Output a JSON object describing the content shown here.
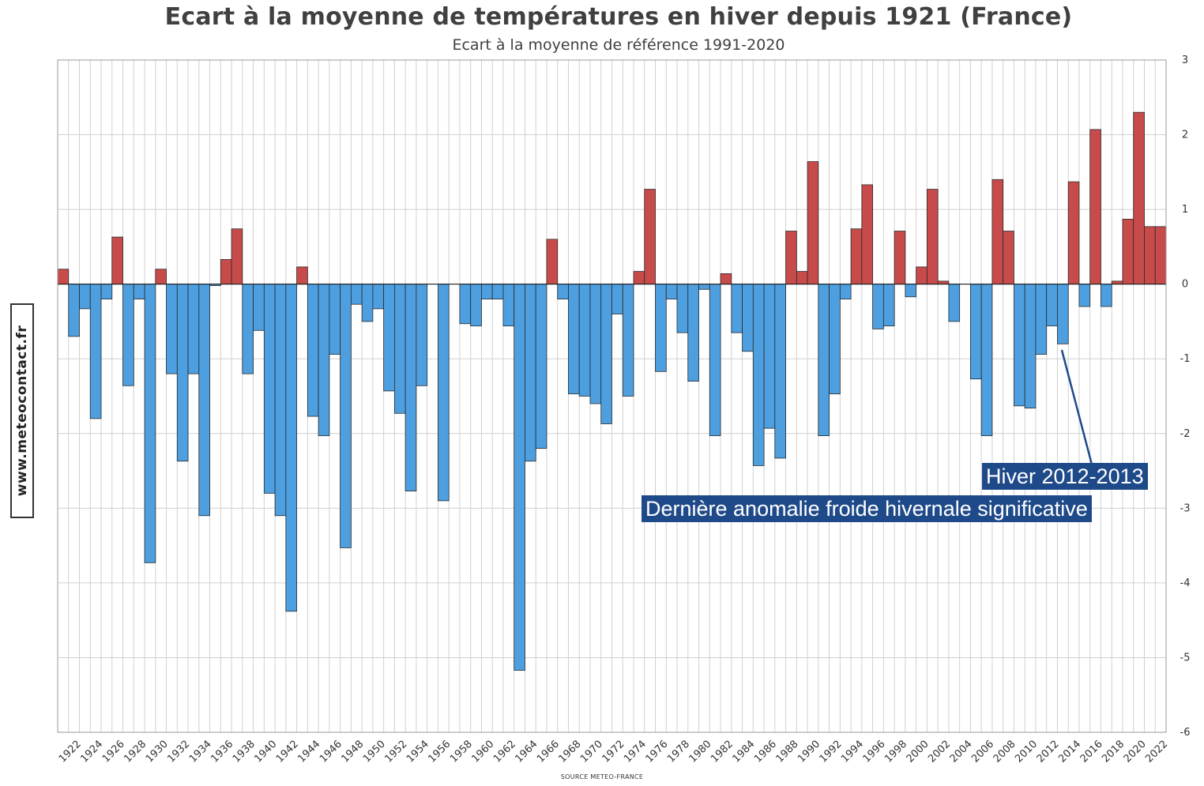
{
  "header": {
    "title": "Ecart à la moyenne de températures en hiver depuis 1921 (France)",
    "subtitle": "Ecart à la moyenne de référence 1991-2020"
  },
  "side_label": "www.meteocontact.fr",
  "source": "SOURCE METEO-FRANCE",
  "annotation": {
    "line1": "Hiver 2012-2013",
    "line2": "Dernière anomalie froide hivernale significative"
  },
  "colors": {
    "positive": "#c84b4b",
    "negative": "#4d9fe0",
    "annotation_bg": "#1f4a8a",
    "grid": "#d0d0d0"
  },
  "chart_data": {
    "type": "bar",
    "title": "Ecart à la moyenne de températures en hiver depuis 1921 (France)",
    "subtitle": "Ecart à la moyenne de référence 1991-2020",
    "xlabel": "",
    "ylabel": "",
    "ylim": [
      -6,
      3
    ],
    "yticks": [
      3,
      2,
      1,
      0,
      -1,
      -2,
      -3,
      -4,
      -5,
      -6
    ],
    "grid": true,
    "yaxis_side": "right",
    "x_tick_labels": [
      "1922",
      "1924",
      "1926",
      "1928",
      "1930",
      "1932",
      "1934",
      "1936",
      "1938",
      "1940",
      "1942",
      "1944",
      "1946",
      "1948",
      "1950",
      "1952",
      "1954",
      "1956",
      "1958",
      "1960",
      "1962",
      "1964",
      "1966",
      "1968",
      "1970",
      "1972",
      "1974",
      "1976",
      "1978",
      "1980",
      "1982",
      "1984",
      "1986",
      "1988",
      "1990",
      "1992",
      "1994",
      "1996",
      "1998",
      "2000",
      "2002",
      "2004",
      "2006",
      "2008",
      "2010",
      "2012",
      "2014",
      "2016",
      "2018",
      "2020",
      "2022"
    ],
    "categories": [
      1921,
      1922,
      1923,
      1924,
      1925,
      1926,
      1927,
      1928,
      1929,
      1930,
      1931,
      1932,
      1933,
      1934,
      1935,
      1936,
      1937,
      1938,
      1939,
      1940,
      1941,
      1942,
      1943,
      1944,
      1945,
      1946,
      1947,
      1948,
      1949,
      1950,
      1951,
      1952,
      1953,
      1954,
      1955,
      1956,
      1957,
      1958,
      1959,
      1960,
      1961,
      1962,
      1963,
      1964,
      1965,
      1966,
      1967,
      1968,
      1969,
      1970,
      1971,
      1972,
      1973,
      1974,
      1975,
      1976,
      1977,
      1978,
      1979,
      1980,
      1981,
      1982,
      1983,
      1984,
      1985,
      1986,
      1987,
      1988,
      1989,
      1990,
      1991,
      1992,
      1993,
      1994,
      1995,
      1996,
      1997,
      1998,
      1999,
      2000,
      2001,
      2002,
      2003,
      2004,
      2005,
      2006,
      2007,
      2008,
      2009,
      2010,
      2011,
      2012,
      2013,
      2014,
      2015,
      2016,
      2017,
      2018,
      2019,
      2020,
      2021,
      2022
    ],
    "values": [
      0.2,
      -0.7,
      -0.33,
      -1.8,
      -0.2,
      0.63,
      -1.36,
      -0.2,
      -3.73,
      0.2,
      -1.2,
      -2.37,
      -1.2,
      -3.1,
      -0.02,
      0.33,
      0.74,
      -1.2,
      -0.62,
      -2.8,
      -3.1,
      -4.38,
      0.23,
      -1.77,
      -2.03,
      -0.94,
      -3.53,
      -0.27,
      -0.5,
      -0.33,
      -1.43,
      -1.73,
      -2.77,
      -1.36,
      0.0,
      -2.9,
      0.0,
      -0.53,
      -0.56,
      -0.2,
      -0.2,
      -0.56,
      -5.17,
      -2.37,
      -2.2,
      0.6,
      -0.2,
      -1.47,
      -1.5,
      -1.6,
      -1.87,
      -0.4,
      -1.5,
      0.17,
      1.27,
      -1.17,
      -0.2,
      -0.65,
      -1.3,
      -0.07,
      -2.03,
      0.14,
      -0.65,
      -0.9,
      -2.43,
      -1.93,
      -2.33,
      0.71,
      0.17,
      1.64,
      -2.03,
      -1.47,
      -0.2,
      0.74,
      1.33,
      -0.6,
      -0.56,
      0.71,
      -0.17,
      0.23,
      1.27,
      0.04,
      -0.5,
      0.0,
      -1.27,
      -2.03,
      1.4,
      0.71,
      -1.63,
      -1.66,
      -0.94,
      -0.56,
      -0.8,
      1.37,
      -0.3,
      2.07,
      -0.3,
      0.04,
      0.87,
      2.3,
      0.77,
      0.77
    ]
  }
}
